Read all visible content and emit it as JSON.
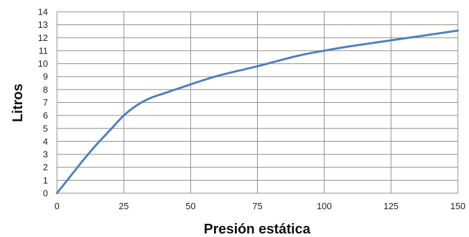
{
  "chart_data": {
    "type": "line",
    "xlabel": "Presión estática",
    "ylabel": "Litros",
    "xlim": [
      0,
      150
    ],
    "ylim": [
      0,
      14
    ],
    "x_ticks": [
      0,
      25,
      50,
      75,
      100,
      125,
      150
    ],
    "y_ticks": [
      0,
      1,
      2,
      3,
      4,
      5,
      6,
      7,
      8,
      9,
      10,
      11,
      12,
      13,
      14
    ],
    "grid": true,
    "series_color": "#4f7fbf",
    "series": [
      {
        "x": [
          0,
          5,
          10,
          15,
          20,
          25,
          30,
          35,
          40,
          50,
          60,
          75,
          90,
          100,
          110,
          125,
          140,
          150
        ],
        "values": [
          0,
          1.3,
          2.6,
          3.8,
          4.9,
          6.0,
          6.8,
          7.35,
          7.7,
          8.4,
          9.05,
          9.8,
          10.6,
          11.0,
          11.35,
          11.8,
          12.25,
          12.55
        ]
      }
    ]
  }
}
